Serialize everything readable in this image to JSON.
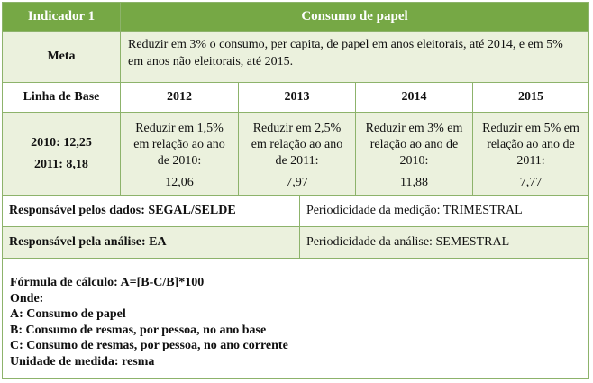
{
  "header": {
    "indicator_label": "Indicador 1",
    "title": "Consumo de papel"
  },
  "meta": {
    "label": "Meta",
    "text": "Reduzir em 3% o consumo, per capita, de papel em anos eleitorais, até 2014, e em 5% em anos não eleitorais, até 2015."
  },
  "baseline": {
    "label": "Linha de Base",
    "values": [
      "2010: 12,25",
      "2011: 8,18"
    ]
  },
  "years": [
    {
      "year": "2012",
      "target": "Reduzir em 1,5% em relação ao ano de 2010:",
      "value": "12,06"
    },
    {
      "year": "2013",
      "target": "Reduzir em 2,5% em relação ao ano de 2011:",
      "value": "7,97"
    },
    {
      "year": "2014",
      "target": "Reduzir em 3% em relação ao ano de 2010:",
      "value": "11,88"
    },
    {
      "year": "2015",
      "target": "Reduzir em 5% em relação ao ano de 2011:",
      "value": "7,77"
    }
  ],
  "responsibility": {
    "data_label": "Responsável pelos dados: SEGAL/SELDE",
    "data_period": "Periodicidade da medição: TRIMESTRAL",
    "analysis_label": "Responsável pela análise: EA",
    "analysis_period": "Periodicidade da análise: SEMESTRAL"
  },
  "formula": {
    "lines": [
      "Fórmula de cálculo: A=[B-C/B]*100",
      "Onde:",
      "A: Consumo de papel",
      "B: Consumo de resmas, por pessoa, no ano base",
      "C: Consumo de resmas, por pessoa, no ano corrente",
      "Unidade de medida: resma"
    ]
  },
  "colors": {
    "header_bg": "#76a845",
    "light_bg": "#ebf1dd",
    "border": "#8db36b"
  }
}
